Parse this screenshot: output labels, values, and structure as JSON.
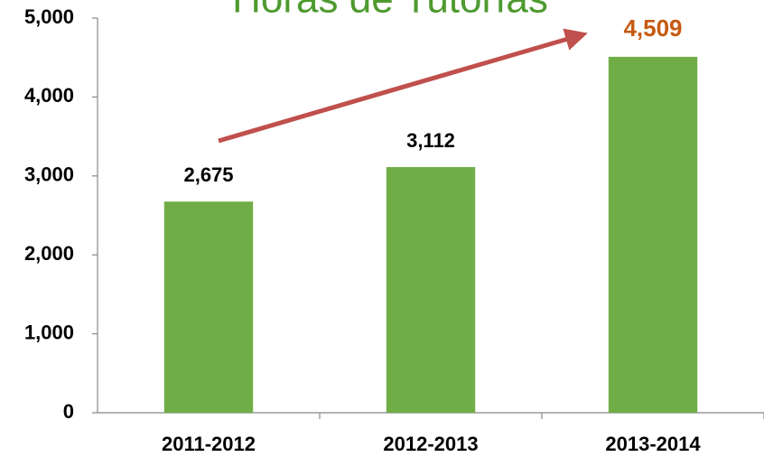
{
  "chart_data": {
    "type": "bar",
    "title": "Horas de Tutorías",
    "categories": [
      "2011-2012",
      "2012-2013",
      "2013-2014"
    ],
    "values": [
      2675,
      3112,
      4509
    ],
    "value_labels": [
      "2,675",
      "3,112",
      "4,509"
    ],
    "value_label_colors": [
      "#000000",
      "#000000",
      "#c55a11"
    ],
    "color": "#70ad47",
    "ylim": [
      0,
      5000
    ],
    "yticks": [
      0,
      {
        "value": 1000,
        "label": "1,000"
      },
      {
        "value": 2000,
        "label": "2,000"
      },
      {
        "value": 3000,
        "label": "3,000"
      },
      {
        "value": 4000,
        "label": "4,000"
      },
      {
        "value": 5000,
        "label": "5,000"
      }
    ],
    "grid": false
  }
}
